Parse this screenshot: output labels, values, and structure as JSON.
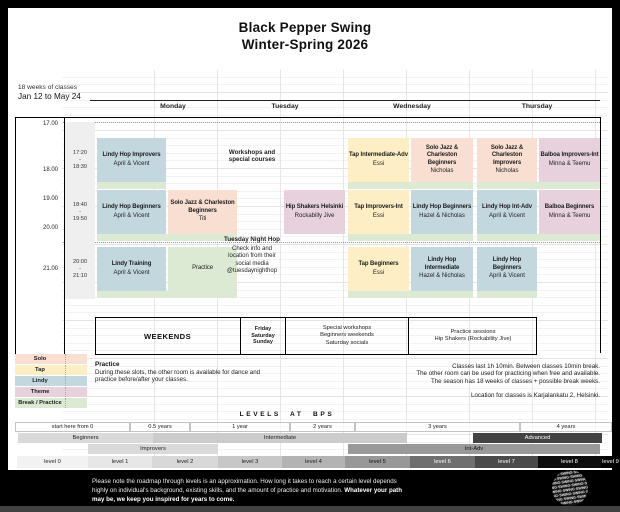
{
  "title": {
    "line1": "Black Pepper Swing",
    "line2": "Winter-Spring 2026"
  },
  "season_info": {
    "line1": "18 weeks of classes",
    "line2": "Jan 12 to May 24"
  },
  "days": [
    "Monday",
    "Tuesday",
    "Wednesday",
    "Thursday"
  ],
  "time_axis": [
    "17.00",
    "18.00",
    "19.00",
    "20.00",
    "21.00"
  ],
  "slots": [
    {
      "start": "17:20",
      "dash": "-",
      "end": "18:30"
    },
    {
      "start": "18:40",
      "dash": "-",
      "end": "19:50"
    },
    {
      "start": "20:00",
      "dash": "-",
      "end": "21:10"
    }
  ],
  "classes": [
    {
      "day": "monday",
      "slot": 0,
      "col": 0,
      "cat": "lindy",
      "title": "Lindy Hop Improvers",
      "teacher": "April & Vicent"
    },
    {
      "day": "monday",
      "slot": 1,
      "col": 0,
      "cat": "lindy",
      "title": "Lindy Hop Beginners",
      "teacher": "April & Vicent"
    },
    {
      "day": "monday",
      "slot": 1,
      "col": 1,
      "cat": "solo",
      "title": "Solo Jazz & Charleston Beginners",
      "teacher": "Titi"
    },
    {
      "day": "monday",
      "slot": 2,
      "col": 0,
      "cat": "lindy",
      "title": "Lindy Training",
      "teacher": "April & Vicent"
    },
    {
      "day": "monday",
      "slot": 2,
      "col": 1,
      "cat": "break",
      "title": "Practice",
      "teacher": "",
      "plain": true
    },
    {
      "day": "tuesday",
      "slot": 1,
      "col": 1,
      "cat": "theme",
      "title": "Hip Shakers Helsinki",
      "teacher": "Rockabilly Jive"
    },
    {
      "day": "wednesday",
      "slot": 0,
      "col": 0,
      "cat": "tap",
      "title": "Tap Intermediate-Adv",
      "teacher": "Essi"
    },
    {
      "day": "wednesday",
      "slot": 0,
      "col": 1,
      "cat": "solo",
      "title": "Solo Jazz & Charleston Beginners",
      "teacher": "Nicholas"
    },
    {
      "day": "wednesday",
      "slot": 1,
      "col": 0,
      "cat": "tap",
      "title": "Tap Improvers-Int",
      "teacher": "Essi"
    },
    {
      "day": "wednesday",
      "slot": 1,
      "col": 1,
      "cat": "lindy",
      "title": "Lindy Hop Beginners",
      "teacher": "Hazel & Nicholas"
    },
    {
      "day": "wednesday",
      "slot": 2,
      "col": 0,
      "cat": "tap",
      "title": "Tap Beginners",
      "teacher": "Essi"
    },
    {
      "day": "wednesday",
      "slot": 2,
      "col": 1,
      "cat": "lindy",
      "title": "Lindy Hop Intermediate",
      "teacher": "Hazel & Nicholas"
    },
    {
      "day": "thursday",
      "slot": 0,
      "col": 0,
      "cat": "solo",
      "title": "Solo Jazz & Charleston Improvers",
      "teacher": "Nicholas"
    },
    {
      "day": "thursday",
      "slot": 0,
      "col": 1,
      "cat": "theme",
      "title": "Balboa Improvers-Int",
      "teacher": "Minna & Teemu"
    },
    {
      "day": "thursday",
      "slot": 1,
      "col": 0,
      "cat": "lindy",
      "title": "Lindy Hop Int-Adv",
      "teacher": "April & Vicent"
    },
    {
      "day": "thursday",
      "slot": 1,
      "col": 1,
      "cat": "theme",
      "title": "Balboa Beginners",
      "teacher": "Minna & Teemu"
    },
    {
      "day": "thursday",
      "slot": 2,
      "col": 0,
      "cat": "lindy",
      "title": "Lindy Hop Beginners",
      "teacher": "April & Vicent"
    }
  ],
  "tuesday_column": {
    "workshops": "Workshops and\nspecial courses",
    "night_hop_title": "Tuesday Night Hop",
    "night_hop_body": "Check info and\nlocation from their\nsocial media\n@tuesdaynighthop"
  },
  "weekends": {
    "label": "WEEKENDS",
    "days": "Friday\nSaturday\nSunday",
    "workshops": "Special workshops\nBeginners weekends\nSaturday socials",
    "practice": "Practice sessions\nHip Shakers (Rockability Jive)"
  },
  "legend": [
    {
      "label": "Solo",
      "key": "solo"
    },
    {
      "label": "Tap",
      "key": "tap"
    },
    {
      "label": "Lindy",
      "key": "lindy"
    },
    {
      "label": "Theme",
      "key": "theme"
    },
    {
      "label": "Break / Practice",
      "key": "break"
    }
  ],
  "practice_note": {
    "title": "Practice",
    "body": "During these slots, the other room is available for dance and practice before/after your classes."
  },
  "info_notes": {
    "line1": "Classes last 1h 10min. Between classes 10min break.",
    "line2": "The other room can be used for practicing when free and available.",
    "line3": "The season has 18 weeks of classes + possible break weeks.",
    "location": "Location for classes is Karjalankatu 2, Helsinki."
  },
  "levels_section": {
    "title": "LEVELS AT BPS",
    "years": [
      "start here from 0",
      "0.5 years",
      "1 year",
      "2 years",
      "3 years",
      "4 years"
    ],
    "bands": [
      {
        "id": "beginners",
        "label": "Beginners",
        "bg": "#d9d9d9",
        "fg": "#222222"
      },
      {
        "id": "intermediate",
        "label": "Intermediate",
        "bg": "#cbcbcb",
        "fg": "#222222"
      },
      {
        "id": "advanced",
        "label": "Advanced",
        "bg": "#434343",
        "fg": "#ffffff"
      },
      {
        "id": "improvers",
        "label": "Improvers",
        "bg": "#d9d9d9",
        "fg": "#222222"
      },
      {
        "id": "intadv",
        "label": "Int-Adv",
        "bg": "#999999",
        "fg": "#111111"
      }
    ],
    "levels": [
      {
        "label": "level 0",
        "bg": "#f2f2f2",
        "fg": "#222222"
      },
      {
        "label": "level 1",
        "bg": "#e7e7e7",
        "fg": "#222222"
      },
      {
        "label": "level 2",
        "bg": "#d8d8d8",
        "fg": "#222222"
      },
      {
        "label": "level 3",
        "bg": "#c7c7c7",
        "fg": "#222222"
      },
      {
        "label": "level 4",
        "bg": "#b3b3b3",
        "fg": "#222222"
      },
      {
        "label": "level 5",
        "bg": "#989898",
        "fg": "#111111"
      },
      {
        "label": "level 6",
        "bg": "#6f6f6f",
        "fg": "#ffffff"
      },
      {
        "label": "level 7",
        "bg": "#4a4a4a",
        "fg": "#ffffff"
      },
      {
        "label": "level 8",
        "bg": "#0d0d0d",
        "fg": "#ffffff"
      },
      {
        "label": "level 9",
        "bg": "#000000",
        "fg": "#ffffff"
      }
    ]
  },
  "footer": {
    "note": "Please note the roadmap through levels is an approximation. How long it takes to reach a certain level depends highly on individual's background, existing skills, and the amount of practice and motivation. ",
    "note_bold": "Whatever your path may be, we keep you inspired for years to come.",
    "logo_word": "SWING"
  },
  "colors": {
    "solo": "#f8dfd2",
    "tap": "#fdeec5",
    "lindy": "#c3d7df",
    "theme": "#e6d1dd",
    "break": "#dcead4",
    "slot_column": "#efefef",
    "frame": "#000000"
  }
}
